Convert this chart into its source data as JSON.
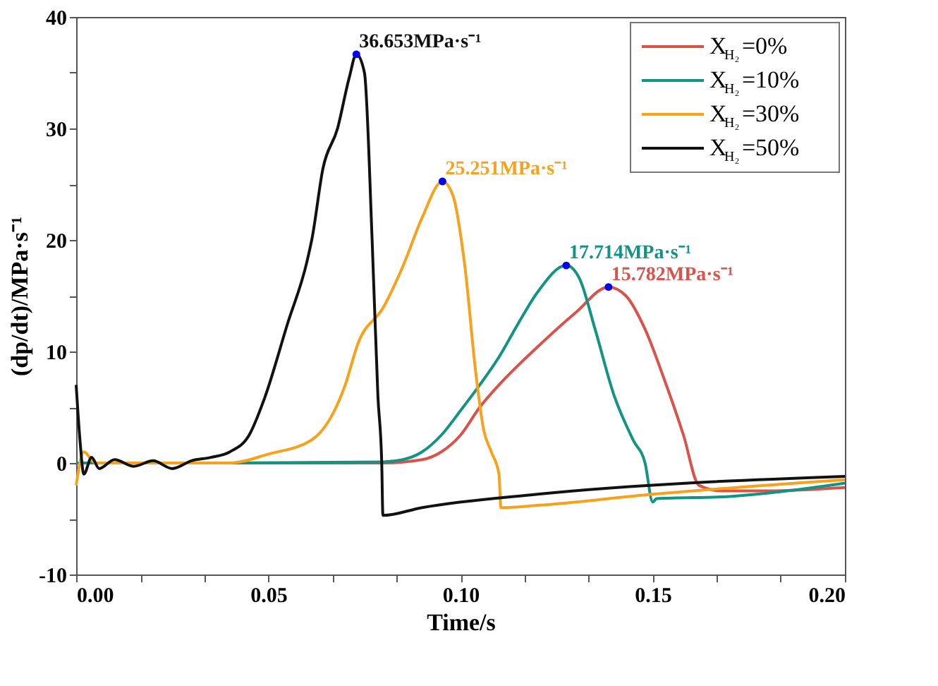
{
  "chart_data": {
    "type": "line",
    "xlabel": "Time/s",
    "ylabel": "(dp/dt)/MPa·s⁻¹",
    "xlim": [
      0,
      0.2
    ],
    "ylim": [
      -10,
      40
    ],
    "xticks": [
      {
        "value": 0,
        "label": "0.00"
      },
      {
        "value": 0.0167,
        "label": null
      },
      {
        "value": 0.0333,
        "label": null
      },
      {
        "value": 0.05,
        "label": "0.05"
      },
      {
        "value": 0.0667,
        "label": null
      },
      {
        "value": 0.0833,
        "label": null
      },
      {
        "value": 0.1,
        "label": "0.10"
      },
      {
        "value": 0.1167,
        "label": null
      },
      {
        "value": 0.1333,
        "label": null
      },
      {
        "value": 0.15,
        "label": "0.15"
      },
      {
        "value": 0.1667,
        "label": null
      },
      {
        "value": 0.1833,
        "label": null
      },
      {
        "value": 0.2,
        "label": "0.20"
      }
    ],
    "yticks": [
      -10,
      {
        "value": -5,
        "label": null
      },
      0,
      {
        "value": 5,
        "label": null
      },
      10,
      {
        "value": 15,
        "label": null
      },
      20,
      {
        "value": 25,
        "label": null
      },
      30,
      {
        "value": 35,
        "label": null
      },
      40
    ],
    "grid": false,
    "legend": "top right",
    "marker": "none",
    "line_style": "solid",
    "series": [
      {
        "name": "X$_{H₂}$=0%",
        "color": "#d9534a",
        "x": [
          0,
          0.04,
          0.08,
          0.09,
          0.095,
          0.1,
          0.105,
          0.11,
          0.12,
          0.13,
          0.1385,
          0.143,
          0.148,
          0.153,
          0.158,
          0.162,
          0.168,
          0.18,
          0.2
        ],
        "values": [
          0,
          0,
          0,
          0.3,
          1,
          2.5,
          5,
          7,
          10.4,
          13.5,
          15.782,
          15,
          12,
          7.5,
          2.5,
          -2,
          -2.5,
          -2.5,
          -2.2
        ]
      },
      {
        "name": "X$_{H₂}$=10%",
        "color": "#129384",
        "x": [
          0,
          0.04,
          0.08,
          0.085,
          0.09,
          0.095,
          0.1,
          0.105,
          0.11,
          0.115,
          0.12,
          0.1275,
          0.131,
          0.135,
          0.14,
          0.145,
          0.148,
          0.15,
          0.151,
          0.17,
          0.2
        ],
        "values": [
          0,
          0,
          0.1,
          0.3,
          1,
          2.5,
          4.7,
          7,
          9.5,
          12.5,
          15.3,
          17.714,
          16.5,
          12,
          6,
          2,
          0,
          -3.5,
          -3.2,
          -3,
          -1.8
        ]
      },
      {
        "name": "X$_{H₂}$=30%",
        "color": "#f9a11b",
        "x": [
          0,
          0.002,
          0.005,
          0.04,
          0.05,
          0.0614,
          0.07,
          0.0733,
          0.08,
          0.0852,
          0.09,
          0.0953,
          0.098,
          0.101,
          0.104,
          0.106,
          0.108,
          0.11,
          0.1105,
          0.12,
          0.15,
          0.2
        ],
        "values": [
          -2,
          1,
          0,
          0,
          0.8,
          2.1,
          7,
          10.7,
          14,
          17.8,
          22,
          25.251,
          24,
          18,
          8,
          3,
          1,
          -1,
          -4,
          -3.8,
          -2.8,
          -1.5
        ]
      },
      {
        "name": "X$_{H₂}$=50%",
        "color": "#111111",
        "x": [
          0,
          0.001,
          0.002,
          0.004,
          0.006,
          0.01,
          0.015,
          0.02,
          0.025,
          0.03,
          0.035,
          0.04,
          0.045,
          0.049,
          0.055,
          0.06,
          0.0614,
          0.0642,
          0.068,
          0.071,
          0.0729,
          0.075,
          0.077,
          0.0785,
          0.0795,
          0.0798,
          0.09,
          0.12,
          0.2
        ],
        "values": [
          7,
          2,
          -1,
          0.5,
          -0.5,
          0.3,
          -0.3,
          0.2,
          -0.5,
          0.2,
          0.5,
          1,
          2.5,
          5.8,
          12.5,
          18,
          20.2,
          26.4,
          30,
          34.5,
          36.653,
          35,
          20,
          6,
          0,
          -4.7,
          -4,
          -2.8,
          -1.2
        ]
      }
    ],
    "annotations": [
      {
        "text": "15.782MPa·s⁻¹",
        "x": 0.1385,
        "y": 15.782
      },
      {
        "text": "17.714MPa·s⁻¹",
        "x": 0.1275,
        "y": 17.714
      },
      {
        "text": "25.251MPa·s⁻¹",
        "x": 0.0953,
        "y": 25.251
      },
      {
        "text": "36.653MPa·s⁻¹",
        "x": 0.0729,
        "y": 36.653
      }
    ]
  }
}
